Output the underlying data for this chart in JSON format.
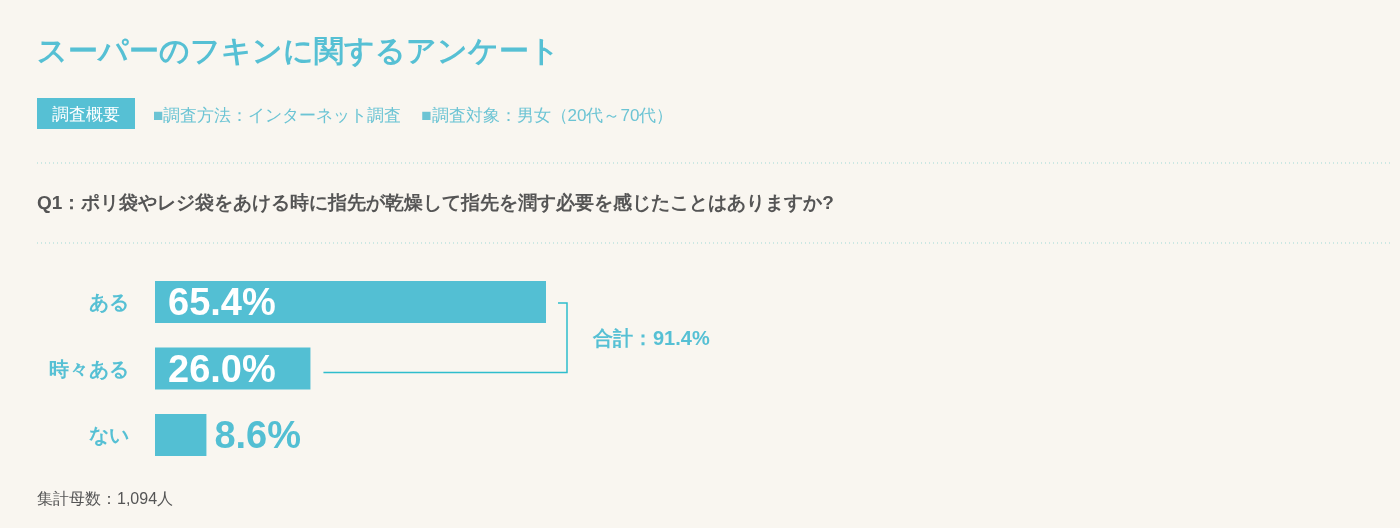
{
  "chart_data": {
    "type": "bar",
    "orientation": "horizontal",
    "title": "スーパーのフキンに関するアンケート",
    "subtitle": "Q1：ポリ袋やレジ袋をあける時に指先が乾燥して指先を潤す必要を感じたことはありますか?",
    "categories": [
      "ある",
      "時々ある",
      "ない"
    ],
    "values": [
      65.4,
      26.0,
      8.6
    ],
    "value_labels": [
      "65.4%",
      "26.0%",
      "8.6%"
    ],
    "color": "#53bfd3",
    "annotations": [
      "調査概要",
      "■調査方法：インターネット調査",
      "■調査対象：男女（20代～70代）",
      "合計：91.4%",
      "集計母数：1,094人"
    ]
  }
}
